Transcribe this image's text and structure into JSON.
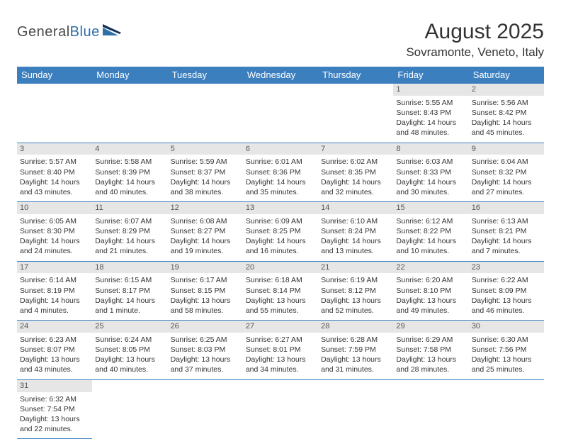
{
  "logo": {
    "word1": "General",
    "word2": "Blue"
  },
  "title": "August 2025",
  "location": "Sovramonte, Veneto, Italy",
  "colors": {
    "header_bg": "#3b7fbf",
    "header_fg": "#ffffff",
    "daynum_bg": "#e6e6e6",
    "border": "#3b7fbf",
    "logo_gray": "#4a4a4a",
    "logo_blue": "#2f6fa8"
  },
  "weekdays": [
    "Sunday",
    "Monday",
    "Tuesday",
    "Wednesday",
    "Thursday",
    "Friday",
    "Saturday"
  ],
  "weeks": [
    [
      null,
      null,
      null,
      null,
      null,
      {
        "n": "1",
        "sr": "Sunrise: 5:55 AM",
        "ss": "Sunset: 8:43 PM",
        "dl": "Daylight: 14 hours and 48 minutes."
      },
      {
        "n": "2",
        "sr": "Sunrise: 5:56 AM",
        "ss": "Sunset: 8:42 PM",
        "dl": "Daylight: 14 hours and 45 minutes."
      }
    ],
    [
      {
        "n": "3",
        "sr": "Sunrise: 5:57 AM",
        "ss": "Sunset: 8:40 PM",
        "dl": "Daylight: 14 hours and 43 minutes."
      },
      {
        "n": "4",
        "sr": "Sunrise: 5:58 AM",
        "ss": "Sunset: 8:39 PM",
        "dl": "Daylight: 14 hours and 40 minutes."
      },
      {
        "n": "5",
        "sr": "Sunrise: 5:59 AM",
        "ss": "Sunset: 8:37 PM",
        "dl": "Daylight: 14 hours and 38 minutes."
      },
      {
        "n": "6",
        "sr": "Sunrise: 6:01 AM",
        "ss": "Sunset: 8:36 PM",
        "dl": "Daylight: 14 hours and 35 minutes."
      },
      {
        "n": "7",
        "sr": "Sunrise: 6:02 AM",
        "ss": "Sunset: 8:35 PM",
        "dl": "Daylight: 14 hours and 32 minutes."
      },
      {
        "n": "8",
        "sr": "Sunrise: 6:03 AM",
        "ss": "Sunset: 8:33 PM",
        "dl": "Daylight: 14 hours and 30 minutes."
      },
      {
        "n": "9",
        "sr": "Sunrise: 6:04 AM",
        "ss": "Sunset: 8:32 PM",
        "dl": "Daylight: 14 hours and 27 minutes."
      }
    ],
    [
      {
        "n": "10",
        "sr": "Sunrise: 6:05 AM",
        "ss": "Sunset: 8:30 PM",
        "dl": "Daylight: 14 hours and 24 minutes."
      },
      {
        "n": "11",
        "sr": "Sunrise: 6:07 AM",
        "ss": "Sunset: 8:29 PM",
        "dl": "Daylight: 14 hours and 21 minutes."
      },
      {
        "n": "12",
        "sr": "Sunrise: 6:08 AM",
        "ss": "Sunset: 8:27 PM",
        "dl": "Daylight: 14 hours and 19 minutes."
      },
      {
        "n": "13",
        "sr": "Sunrise: 6:09 AM",
        "ss": "Sunset: 8:25 PM",
        "dl": "Daylight: 14 hours and 16 minutes."
      },
      {
        "n": "14",
        "sr": "Sunrise: 6:10 AM",
        "ss": "Sunset: 8:24 PM",
        "dl": "Daylight: 14 hours and 13 minutes."
      },
      {
        "n": "15",
        "sr": "Sunrise: 6:12 AM",
        "ss": "Sunset: 8:22 PM",
        "dl": "Daylight: 14 hours and 10 minutes."
      },
      {
        "n": "16",
        "sr": "Sunrise: 6:13 AM",
        "ss": "Sunset: 8:21 PM",
        "dl": "Daylight: 14 hours and 7 minutes."
      }
    ],
    [
      {
        "n": "17",
        "sr": "Sunrise: 6:14 AM",
        "ss": "Sunset: 8:19 PM",
        "dl": "Daylight: 14 hours and 4 minutes."
      },
      {
        "n": "18",
        "sr": "Sunrise: 6:15 AM",
        "ss": "Sunset: 8:17 PM",
        "dl": "Daylight: 14 hours and 1 minute."
      },
      {
        "n": "19",
        "sr": "Sunrise: 6:17 AM",
        "ss": "Sunset: 8:15 PM",
        "dl": "Daylight: 13 hours and 58 minutes."
      },
      {
        "n": "20",
        "sr": "Sunrise: 6:18 AM",
        "ss": "Sunset: 8:14 PM",
        "dl": "Daylight: 13 hours and 55 minutes."
      },
      {
        "n": "21",
        "sr": "Sunrise: 6:19 AM",
        "ss": "Sunset: 8:12 PM",
        "dl": "Daylight: 13 hours and 52 minutes."
      },
      {
        "n": "22",
        "sr": "Sunrise: 6:20 AM",
        "ss": "Sunset: 8:10 PM",
        "dl": "Daylight: 13 hours and 49 minutes."
      },
      {
        "n": "23",
        "sr": "Sunrise: 6:22 AM",
        "ss": "Sunset: 8:09 PM",
        "dl": "Daylight: 13 hours and 46 minutes."
      }
    ],
    [
      {
        "n": "24",
        "sr": "Sunrise: 6:23 AM",
        "ss": "Sunset: 8:07 PM",
        "dl": "Daylight: 13 hours and 43 minutes."
      },
      {
        "n": "25",
        "sr": "Sunrise: 6:24 AM",
        "ss": "Sunset: 8:05 PM",
        "dl": "Daylight: 13 hours and 40 minutes."
      },
      {
        "n": "26",
        "sr": "Sunrise: 6:25 AM",
        "ss": "Sunset: 8:03 PM",
        "dl": "Daylight: 13 hours and 37 minutes."
      },
      {
        "n": "27",
        "sr": "Sunrise: 6:27 AM",
        "ss": "Sunset: 8:01 PM",
        "dl": "Daylight: 13 hours and 34 minutes."
      },
      {
        "n": "28",
        "sr": "Sunrise: 6:28 AM",
        "ss": "Sunset: 7:59 PM",
        "dl": "Daylight: 13 hours and 31 minutes."
      },
      {
        "n": "29",
        "sr": "Sunrise: 6:29 AM",
        "ss": "Sunset: 7:58 PM",
        "dl": "Daylight: 13 hours and 28 minutes."
      },
      {
        "n": "30",
        "sr": "Sunrise: 6:30 AM",
        "ss": "Sunset: 7:56 PM",
        "dl": "Daylight: 13 hours and 25 minutes."
      }
    ],
    [
      {
        "n": "31",
        "sr": "Sunrise: 6:32 AM",
        "ss": "Sunset: 7:54 PM",
        "dl": "Daylight: 13 hours and 22 minutes."
      },
      null,
      null,
      null,
      null,
      null,
      null
    ]
  ]
}
